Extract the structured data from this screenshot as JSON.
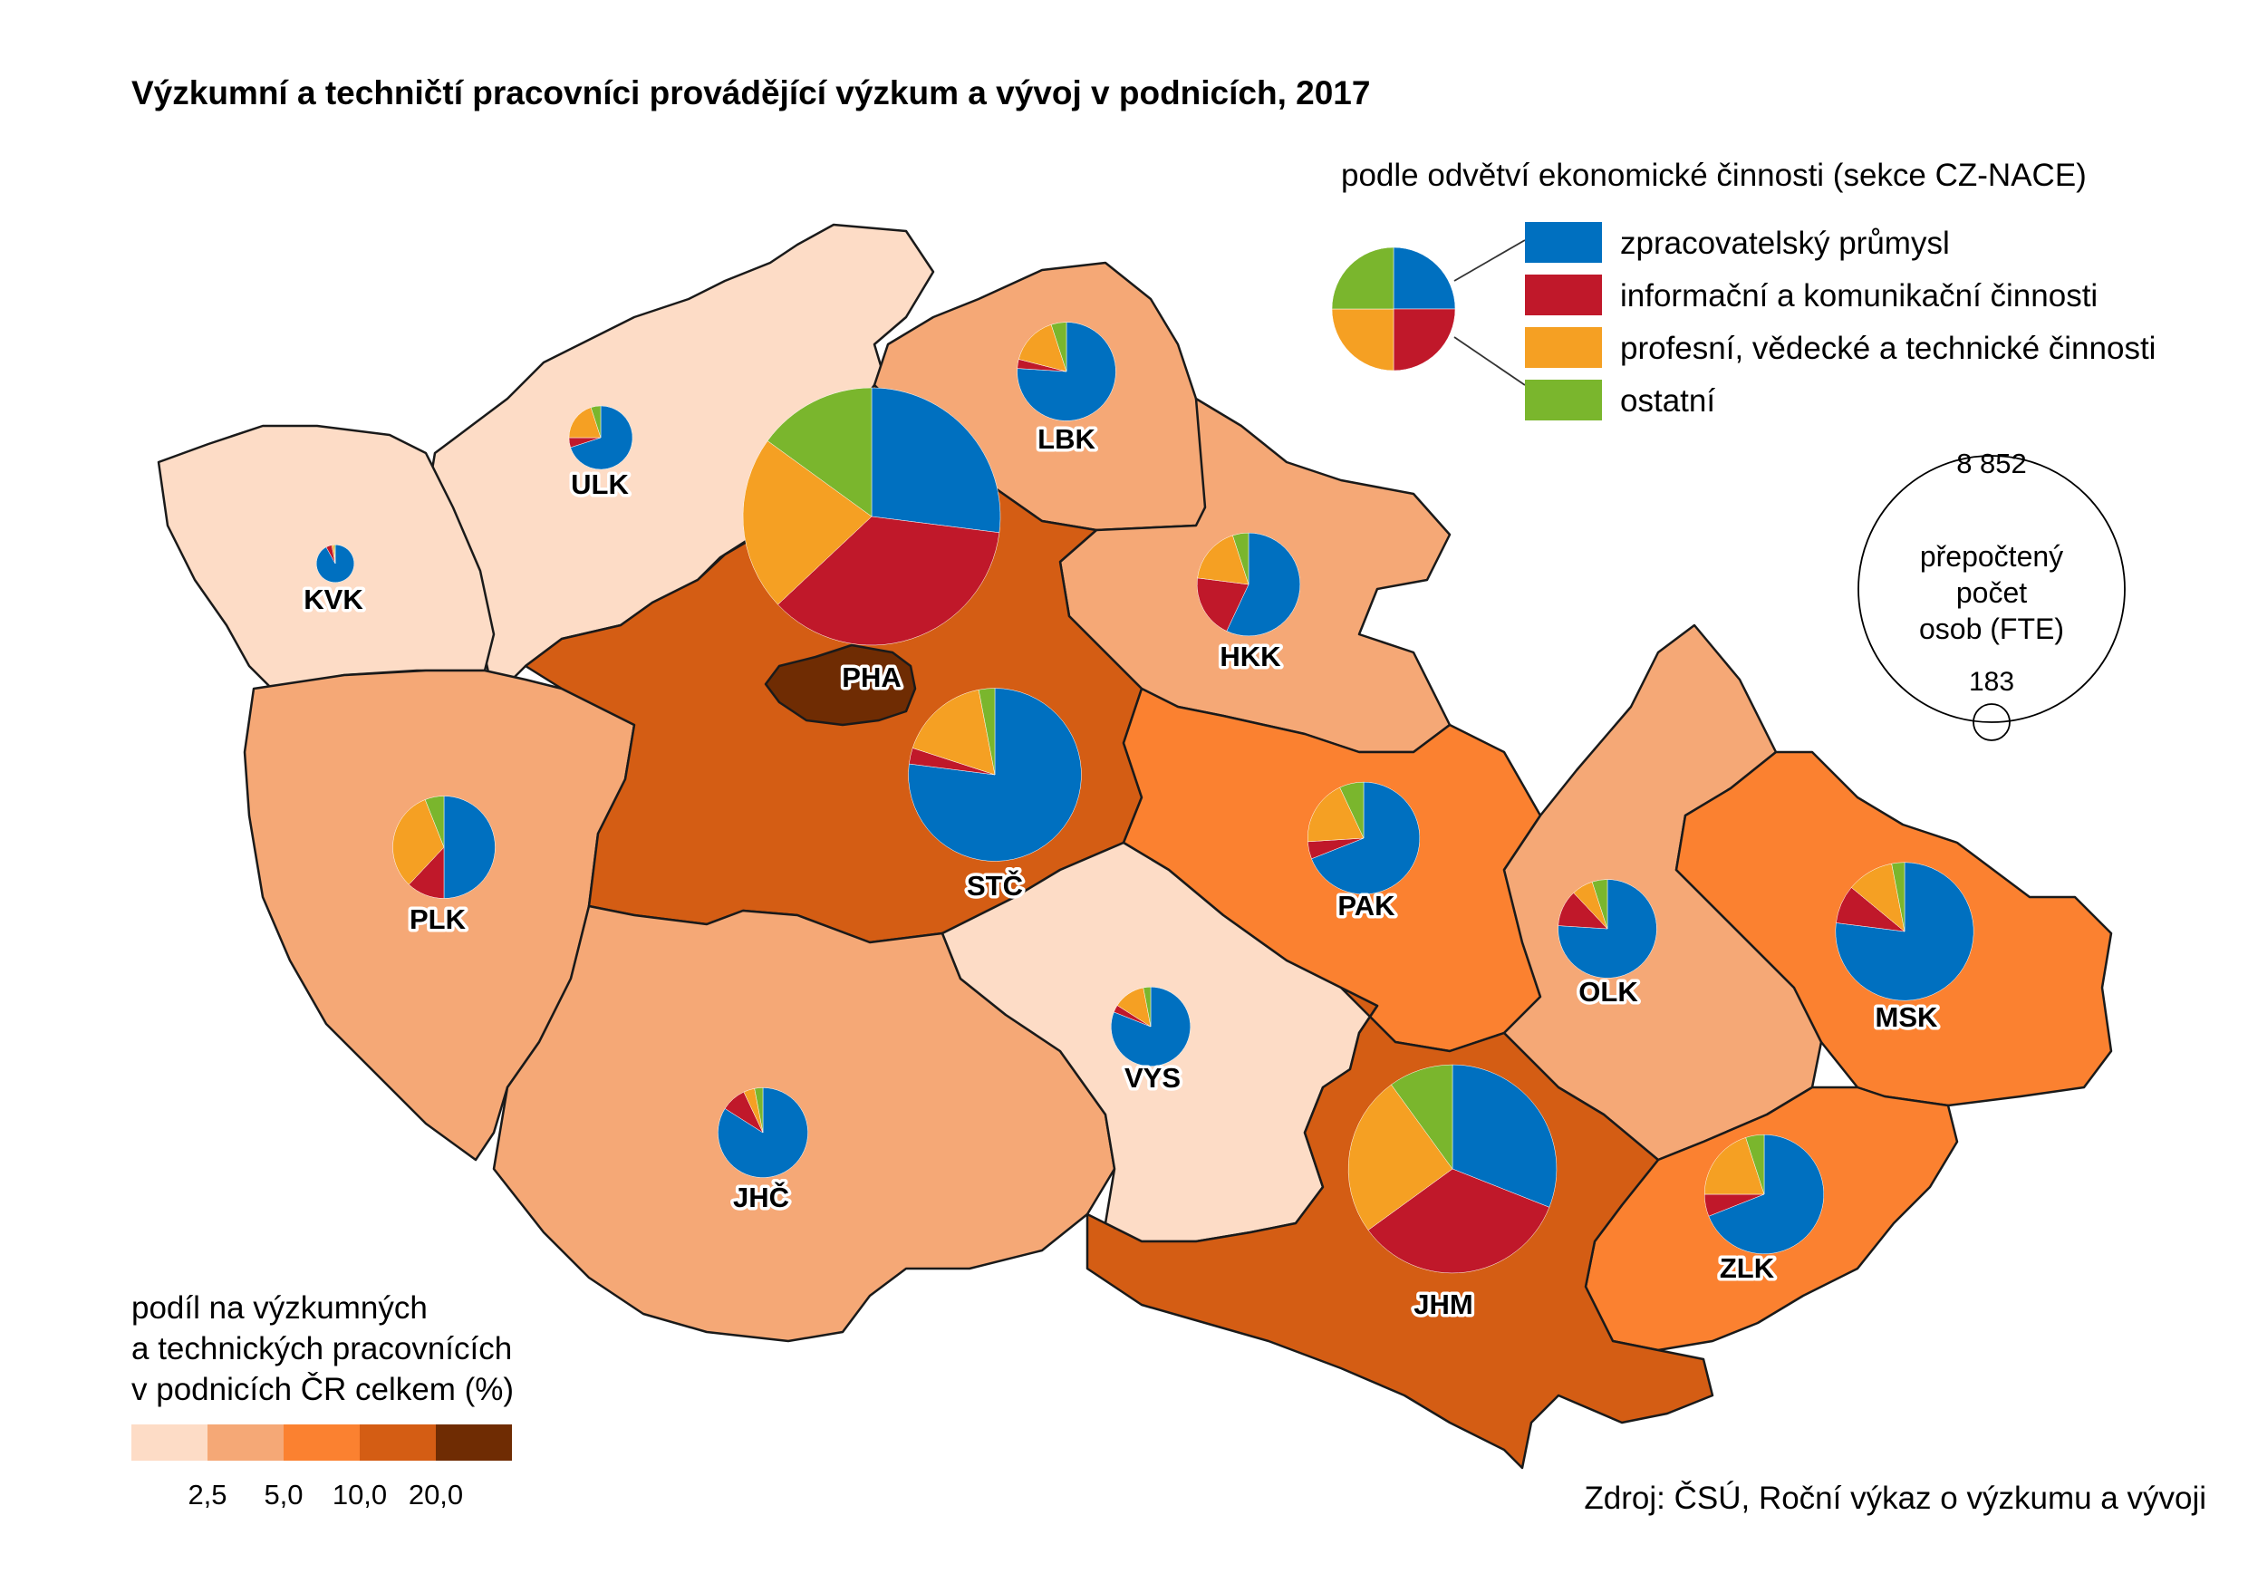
{
  "title": "Výzkumní a techničtí pracovníci provádějící výzkum a vývoj v podnicích, 2017",
  "source": "Zdroj: ČSÚ, Roční výkaz o výzkumu a vývoji",
  "pie_legend": {
    "title": "podle odvětví ekonomické činnosti (sekce CZ-NACE)",
    "categories": [
      {
        "label": "zpracovatelský průmysl",
        "color": "#0070c0"
      },
      {
        "label": "informační a komunikační činnosti",
        "color": "#c0182a"
      },
      {
        "label": "profesní, vědecké a technické činnosti",
        "color": "#f5a023"
      },
      {
        "label": "ostatní",
        "color": "#7ab62d"
      }
    ]
  },
  "size_legend": {
    "max_value": "8 852",
    "min_value": "183",
    "line1": "přepočtený",
    "line2": "počet",
    "line3": "osob (FTE)"
  },
  "choropleth_legend": {
    "line1": "podíl na výzkumných",
    "line2": "a technických pracovnících",
    "line3": "v podnicích ČR celkem (%)",
    "breaks": [
      "2,5",
      "5,0",
      "10,0",
      "20,0"
    ],
    "colors": [
      "#fddcc6",
      "#f5a876",
      "#fb8130",
      "#d45d14",
      "#6f2c03"
    ]
  },
  "chart_data": {
    "type": "map",
    "regions": [
      {
        "code": "PHA",
        "class": 4,
        "fte": 8852,
        "shares": [
          0.27,
          0.36,
          0.22,
          0.15
        ]
      },
      {
        "code": "STČ",
        "class": 3,
        "fte": 4000,
        "shares": [
          0.77,
          0.03,
          0.17,
          0.03
        ]
      },
      {
        "code": "JHM",
        "class": 3,
        "fte": 5800,
        "shares": [
          0.31,
          0.34,
          0.25,
          0.1
        ]
      },
      {
        "code": "PLK",
        "class": 1,
        "fte": 1400,
        "shares": [
          0.5,
          0.12,
          0.32,
          0.06
        ]
      },
      {
        "code": "JHČ",
        "class": 1,
        "fte": 1080,
        "shares": [
          0.84,
          0.09,
          0.04,
          0.03
        ]
      },
      {
        "code": "LBK",
        "class": 1,
        "fte": 1300,
        "shares": [
          0.76,
          0.03,
          0.16,
          0.05
        ]
      },
      {
        "code": "HKK",
        "class": 1,
        "fte": 1420,
        "shares": [
          0.57,
          0.2,
          0.18,
          0.05
        ]
      },
      {
        "code": "OLK",
        "class": 1,
        "fte": 1300,
        "shares": [
          0.76,
          0.12,
          0.07,
          0.05
        ]
      },
      {
        "code": "ULK",
        "class": 0,
        "fte": 540,
        "shares": [
          0.7,
          0.05,
          0.2,
          0.05
        ]
      },
      {
        "code": "KVK",
        "class": 0,
        "fte": 190,
        "shares": [
          0.92,
          0.05,
          0.02,
          0.01
        ]
      },
      {
        "code": "VYS",
        "class": 0,
        "fte": 840,
        "shares": [
          0.81,
          0.03,
          0.13,
          0.03
        ]
      },
      {
        "code": "PAK",
        "class": 2,
        "fte": 1680,
        "shares": [
          0.69,
          0.05,
          0.19,
          0.07
        ]
      },
      {
        "code": "MSK",
        "class": 2,
        "fte": 2550,
        "shares": [
          0.77,
          0.09,
          0.11,
          0.03
        ]
      },
      {
        "code": "ZLK",
        "class": 2,
        "fte": 1900,
        "shares": [
          0.69,
          0.06,
          0.2,
          0.05
        ]
      }
    ]
  }
}
